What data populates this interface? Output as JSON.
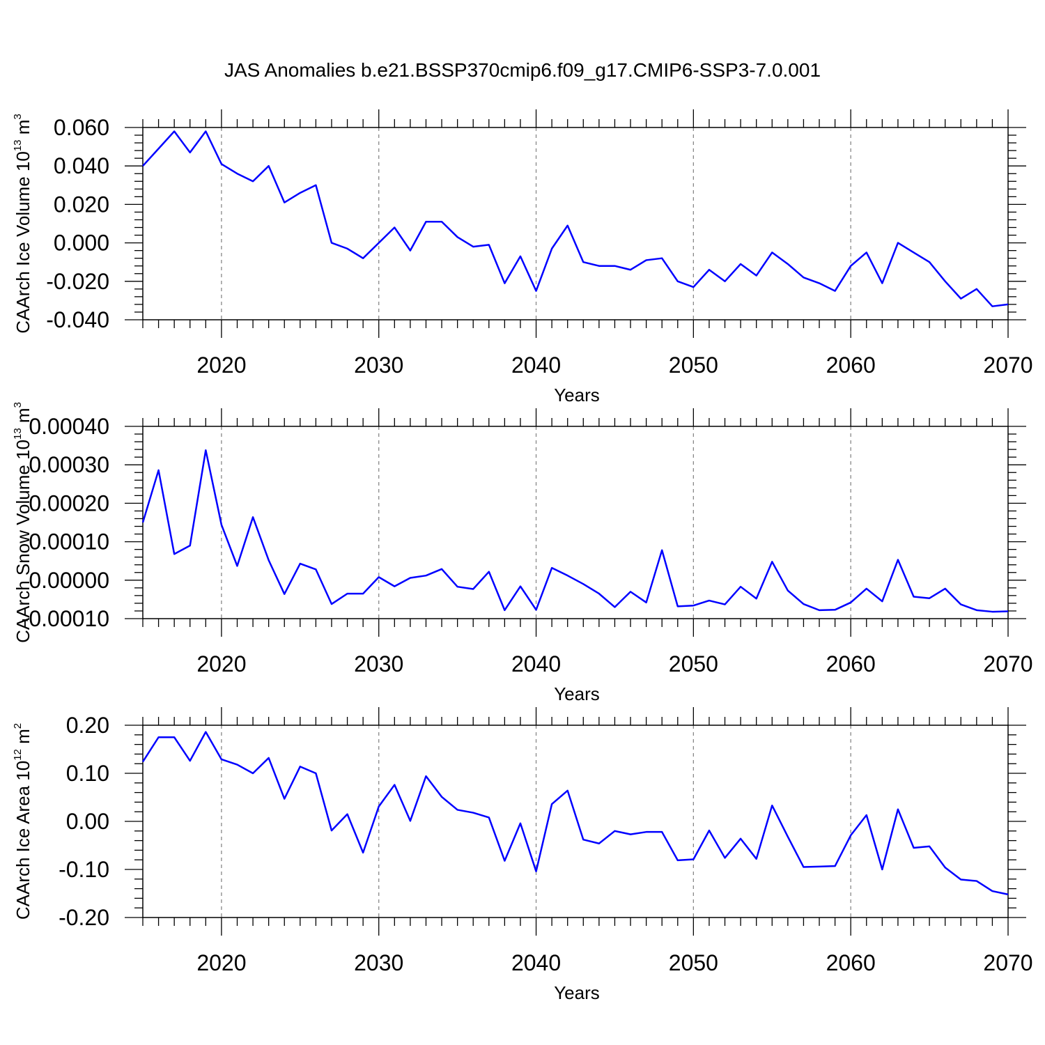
{
  "figure": {
    "title": "JAS Anomalies b.e21.BSSP370cmip6.f09_g17.CMIP6-SSP3-7.0.001"
  },
  "chart_data": [
    {
      "type": "line",
      "ylabel": {
        "text": "CAArch Ice Volume 10",
        "exp": "13",
        "unit": " m",
        "unit_exp": "3"
      },
      "xlabel": "Years",
      "xlim": [
        2015,
        2070
      ],
      "ylim": [
        -0.04,
        0.06
      ],
      "xticks": [
        2020,
        2030,
        2040,
        2050,
        2060,
        2070
      ],
      "yticks": [
        -0.04,
        -0.02,
        0.0,
        0.02,
        0.04,
        0.06
      ],
      "ytick_labels": [
        "-0.040",
        "-0.020",
        "0.000",
        "0.020",
        "0.040",
        "0.060"
      ],
      "grid": "vertical dashed at major x ticks",
      "line_color": "#0000ff",
      "x": [
        2015,
        2016,
        2017,
        2018,
        2019,
        2020,
        2021,
        2022,
        2023,
        2024,
        2025,
        2026,
        2027,
        2028,
        2029,
        2030,
        2031,
        2032,
        2033,
        2034,
        2035,
        2036,
        2037,
        2038,
        2039,
        2040,
        2041,
        2042,
        2043,
        2044,
        2045,
        2046,
        2047,
        2048,
        2049,
        2050,
        2051,
        2052,
        2053,
        2054,
        2055,
        2056,
        2057,
        2058,
        2059,
        2060,
        2061,
        2062,
        2063,
        2064,
        2065,
        2066,
        2067,
        2068,
        2069,
        2070
      ],
      "values": [
        0.04,
        0.049,
        0.058,
        0.047,
        0.058,
        0.041,
        0.036,
        0.032,
        0.04,
        0.021,
        0.026,
        0.03,
        0.0,
        -0.003,
        -0.008,
        0.0,
        0.008,
        -0.004,
        0.011,
        0.011,
        0.003,
        -0.002,
        -0.001,
        -0.021,
        -0.007,
        -0.025,
        -0.003,
        0.009,
        -0.01,
        -0.012,
        -0.012,
        -0.014,
        -0.009,
        -0.008,
        -0.02,
        -0.023,
        -0.014,
        -0.02,
        -0.011,
        -0.017,
        -0.005,
        -0.011,
        -0.018,
        -0.021,
        -0.025,
        -0.012,
        -0.005,
        -0.021,
        0.0,
        -0.005,
        -0.01,
        -0.02,
        -0.029,
        -0.024,
        -0.033,
        -0.032
      ]
    },
    {
      "type": "line",
      "ylabel": {
        "text": "CAArch Snow Volume 10",
        "exp": "13",
        "unit": " m",
        "unit_exp": "3"
      },
      "xlabel": "Years",
      "xlim": [
        2015,
        2070
      ],
      "ylim": [
        -0.0001,
        0.0004
      ],
      "xticks": [
        2020,
        2030,
        2040,
        2050,
        2060,
        2070
      ],
      "yticks": [
        -0.0001,
        0.0,
        0.0001,
        0.0002,
        0.0003,
        0.0004
      ],
      "ytick_labels": [
        "-0.00010",
        "0.00000",
        "0.00010",
        "0.00020",
        "0.00030",
        "0.00040"
      ],
      "grid": "vertical dashed at major x ticks",
      "line_color": "#0000ff",
      "x": [
        2015,
        2016,
        2017,
        2018,
        2019,
        2020,
        2021,
        2022,
        2023,
        2024,
        2025,
        2026,
        2027,
        2028,
        2029,
        2030,
        2031,
        2032,
        2033,
        2034,
        2035,
        2036,
        2037,
        2038,
        2039,
        2040,
        2041,
        2042,
        2043,
        2044,
        2045,
        2046,
        2047,
        2048,
        2049,
        2050,
        2051,
        2052,
        2053,
        2054,
        2055,
        2056,
        2057,
        2058,
        2059,
        2060,
        2061,
        2062,
        2063,
        2064,
        2065,
        2066,
        2067,
        2068,
        2069,
        2070
      ],
      "values": [
        0.00015,
        0.000286,
        6.8e-05,
        9e-05,
        0.000338,
        0.000144,
        3.7e-05,
        0.000164,
        5.2e-05,
        -3.6e-05,
        4.3e-05,
        2.8e-05,
        -6.2e-05,
        -3.5e-05,
        -3.5e-05,
        8e-06,
        -1.6e-05,
        6e-06,
        1.2e-05,
        2.9e-05,
        -1.7e-05,
        -2.3e-05,
        2.2e-05,
        -7.8e-05,
        -1.6e-05,
        -7.7e-05,
        3.2e-05,
        1.2e-05,
        -1e-05,
        -3.5e-05,
        -7e-05,
        -3e-05,
        -5.8e-05,
        7.8e-05,
        -6.8e-05,
        -6.6e-05,
        -5.3e-05,
        -6.3e-05,
        -1.7e-05,
        -4.8e-05,
        4.8e-05,
        -2.7e-05,
        -6.2e-05,
        -7.8e-05,
        -7.7e-05,
        -5.8e-05,
        -2.2e-05,
        -5.5e-05,
        5.3e-05,
        -4.3e-05,
        -4.7e-05,
        -2.2e-05,
        -6.3e-05,
        -7.8e-05,
        -8.2e-05,
        -8.1e-05
      ]
    },
    {
      "type": "line",
      "ylabel": {
        "text": "CAArch Ice Area 10",
        "exp": "12",
        "unit": " m",
        "unit_exp": "2"
      },
      "xlabel": "Years",
      "xlim": [
        2015,
        2070
      ],
      "ylim": [
        -0.2,
        0.2
      ],
      "xticks": [
        2020,
        2030,
        2040,
        2050,
        2060,
        2070
      ],
      "yticks": [
        -0.2,
        -0.1,
        0.0,
        0.1,
        0.2
      ],
      "ytick_labels": [
        "-0.20",
        "-0.10",
        "0.00",
        "0.10",
        "0.20"
      ],
      "grid": "vertical dashed at major x ticks",
      "line_color": "#0000ff",
      "x": [
        2015,
        2016,
        2017,
        2018,
        2019,
        2020,
        2021,
        2022,
        2023,
        2024,
        2025,
        2026,
        2027,
        2028,
        2029,
        2030,
        2031,
        2032,
        2033,
        2034,
        2035,
        2036,
        2037,
        2038,
        2039,
        2040,
        2041,
        2042,
        2043,
        2044,
        2045,
        2046,
        2047,
        2048,
        2049,
        2050,
        2051,
        2052,
        2053,
        2054,
        2055,
        2056,
        2057,
        2058,
        2059,
        2060,
        2061,
        2062,
        2063,
        2064,
        2065,
        2066,
        2067,
        2068,
        2069,
        2070
      ],
      "values": [
        0.124,
        0.175,
        0.175,
        0.126,
        0.186,
        0.129,
        0.118,
        0.1,
        0.132,
        0.047,
        0.114,
        0.1,
        -0.019,
        0.015,
        -0.065,
        0.031,
        0.076,
        0.001,
        0.094,
        0.051,
        0.024,
        0.018,
        0.008,
        -0.082,
        -0.004,
        -0.104,
        0.036,
        0.064,
        -0.038,
        -0.046,
        -0.02,
        -0.027,
        -0.022,
        -0.022,
        -0.081,
        -0.079,
        -0.019,
        -0.076,
        -0.036,
        -0.078,
        0.033,
        -0.032,
        -0.095,
        -0.094,
        -0.093,
        -0.029,
        0.013,
        -0.1,
        0.025,
        -0.055,
        -0.052,
        -0.096,
        -0.121,
        -0.124,
        -0.145,
        -0.152
      ]
    }
  ]
}
